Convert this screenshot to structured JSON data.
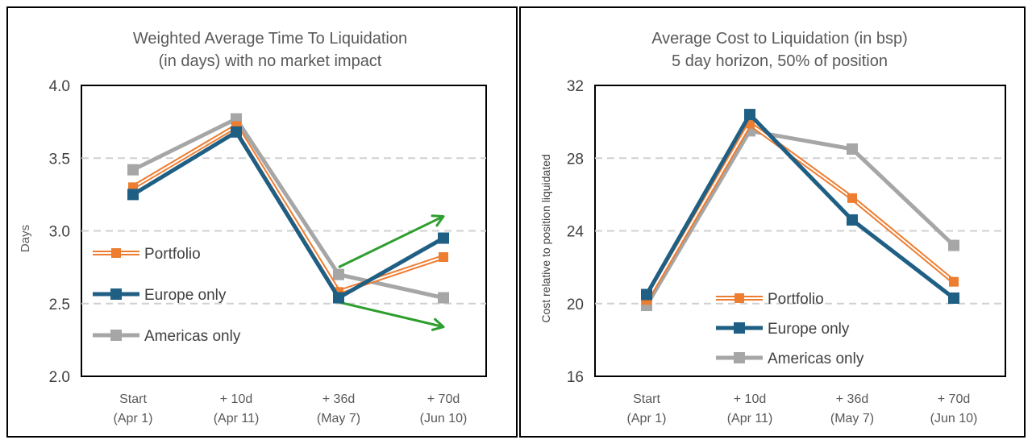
{
  "charts": {
    "colors": {
      "portfolio": "#ED7D31",
      "europe": "#1F5F84",
      "americas": "#A6A6A6",
      "arrow": "#2E9E2E",
      "grid": "#D0D0D0"
    },
    "left": {
      "title_line1": "Weighted Average Time To Liquidation",
      "title_line2": "(in days) with no market impact",
      "ylabel": "Days",
      "legend": [
        "Portfolio",
        "Europe only",
        "Americas only"
      ]
    },
    "right": {
      "title_line1": "Average Cost to Liquidation (in bsp)",
      "title_line2": "5 day horizon, 50% of position",
      "ylabel": "Cost relative to position liquidated",
      "legend": [
        "Portfolio",
        "Europe only",
        "Americas only"
      ]
    }
  },
  "chart_data": [
    {
      "type": "line",
      "title": "Weighted Average Time To Liquidation (in days) with no market impact",
      "xlabel": "",
      "ylabel": "Days",
      "categories": [
        [
          "Start",
          "(Apr 1)"
        ],
        [
          "+ 10d",
          "(Apr 11)"
        ],
        [
          "+ 36d",
          "(May 7)"
        ],
        [
          "+ 70d",
          "(Jun 10)"
        ]
      ],
      "ylim": [
        2.0,
        4.0
      ],
      "yticks": [
        "2.0",
        "2.5",
        "3.0",
        "3.5",
        "4.0"
      ],
      "grid": true,
      "legend_position": "left",
      "series": [
        {
          "name": "Portfolio",
          "values": [
            3.3,
            3.72,
            2.58,
            2.82
          ]
        },
        {
          "name": "Europe only",
          "values": [
            3.25,
            3.68,
            2.54,
            2.95
          ]
        },
        {
          "name": "Americas only",
          "values": [
            3.42,
            3.77,
            2.7,
            2.54
          ]
        }
      ],
      "annotations": [
        "green arrow up from + 36d toward + 70d",
        "green arrow down from + 36d toward + 70d"
      ]
    },
    {
      "type": "line",
      "title": "Average Cost to Liquidation (in bsp) 5 day horizon, 50% of position",
      "xlabel": "",
      "ylabel": "Cost relative to position liquidated",
      "categories": [
        [
          "Start",
          "(Apr 1)"
        ],
        [
          "+ 10d",
          "(Apr 11)"
        ],
        [
          "+ 36d",
          "(May 7)"
        ],
        [
          "+ 70d",
          "(Jun 10)"
        ]
      ],
      "ylim": [
        16,
        32
      ],
      "yticks": [
        "16",
        "20",
        "24",
        "28",
        "32"
      ],
      "grid": true,
      "legend_position": "bottom-right",
      "series": [
        {
          "name": "Portfolio",
          "values": [
            20.2,
            29.9,
            25.8,
            21.2
          ]
        },
        {
          "name": "Europe only",
          "values": [
            20.5,
            30.4,
            24.6,
            20.3
          ]
        },
        {
          "name": "Americas only",
          "values": [
            19.9,
            29.5,
            28.5,
            23.2
          ]
        }
      ]
    }
  ]
}
